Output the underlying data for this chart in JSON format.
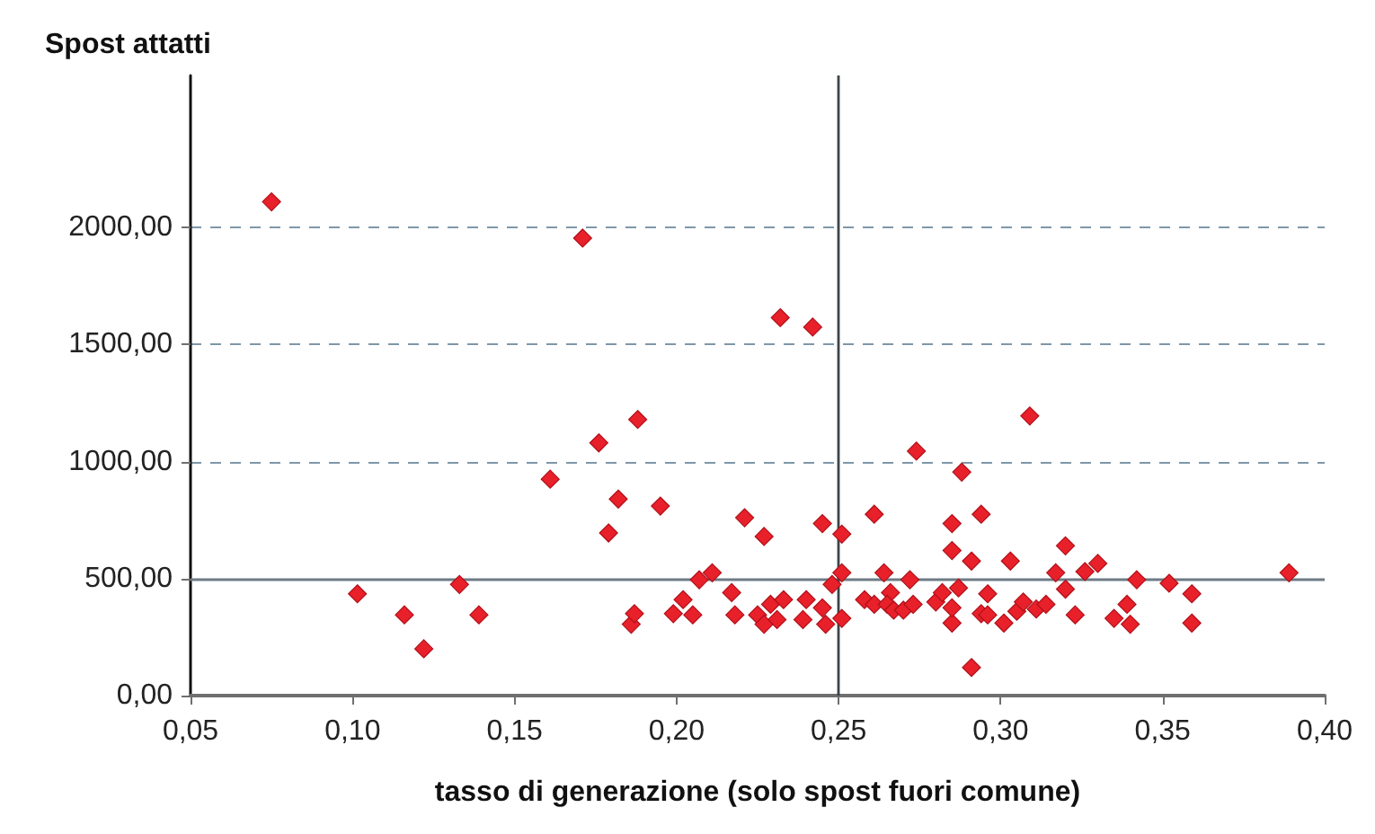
{
  "chart_data": {
    "type": "scatter",
    "xlabel": "tasso di generazione (solo spost fuori comune)",
    "ylabel": "Spost attatti",
    "xlim": [
      0.05,
      0.4
    ],
    "xticks": [
      {
        "value": 0.05,
        "label": "0,05"
      },
      {
        "value": 0.1,
        "label": "0,10"
      },
      {
        "value": 0.15,
        "label": "0,15"
      },
      {
        "value": 0.2,
        "label": "0,20"
      },
      {
        "value": 0.25,
        "label": "0,25"
      },
      {
        "value": 0.3,
        "label": "0,30"
      },
      {
        "value": 0.35,
        "label": "0,35"
      },
      {
        "value": 0.4,
        "label": "0,40"
      }
    ],
    "ylim": [
      0,
      2650
    ],
    "yticks": [
      {
        "value": 0,
        "label": "0,00"
      },
      {
        "value": 500,
        "label": "500,00"
      },
      {
        "value": 1000,
        "label": "1000,00"
      },
      {
        "value": 1500,
        "label": "1500,00"
      },
      {
        "value": 2000,
        "label": "2000,00"
      }
    ],
    "grid": "y",
    "marker": "diamond",
    "ref_lines": [
      {
        "axis": "y",
        "value": 500,
        "color": "#6d7b85"
      },
      {
        "axis": "x",
        "value": 0.25,
        "color": "#3c4348"
      }
    ],
    "series": [
      {
        "color": "#e8202a",
        "x": [
          0.075,
          0.1015,
          0.116,
          0.122,
          0.133,
          0.139,
          0.161,
          0.171,
          0.176,
          0.179,
          0.182,
          0.186,
          0.187,
          0.188,
          0.195,
          0.199,
          0.202,
          0.205,
          0.207,
          0.211,
          0.217,
          0.218,
          0.221,
          0.225,
          0.227,
          0.227,
          0.229,
          0.231,
          0.232,
          0.233,
          0.239,
          0.24,
          0.242,
          0.245,
          0.245,
          0.246,
          0.248,
          0.251,
          0.251,
          0.251,
          0.258,
          0.261,
          0.261,
          0.264,
          0.266,
          0.265,
          0.267,
          0.27,
          0.272,
          0.273,
          0.274,
          0.28,
          0.282,
          0.285,
          0.285,
          0.285,
          0.285,
          0.287,
          0.288,
          0.291,
          0.291,
          0.294,
          0.294,
          0.296,
          0.296,
          0.301,
          0.303,
          0.305,
          0.307,
          0.309,
          0.311,
          0.314,
          0.317,
          0.32,
          0.32,
          0.323,
          0.326,
          0.33,
          0.335,
          0.339,
          0.34,
          0.342,
          0.352,
          0.359,
          0.359,
          0.389
        ],
        "values": [
          2110,
          435,
          345,
          200,
          475,
          345,
          925,
          1955,
          1080,
          695,
          840,
          305,
          350,
          1180,
          810,
          350,
          410,
          345,
          495,
          525,
          440,
          345,
          760,
          345,
          680,
          305,
          390,
          325,
          1615,
          410,
          325,
          410,
          1575,
          735,
          375,
          305,
          475,
          690,
          525,
          330,
          410,
          775,
          390,
          525,
          440,
          390,
          365,
          365,
          495,
          390,
          1045,
          400,
          440,
          735,
          620,
          310,
          375,
          460,
          955,
          575,
          120,
          775,
          350,
          435,
          345,
          310,
          575,
          360,
          400,
          1195,
          370,
          390,
          525,
          640,
          455,
          345,
          530,
          565,
          330,
          390,
          305,
          495,
          480,
          435,
          310,
          525
        ]
      }
    ]
  }
}
